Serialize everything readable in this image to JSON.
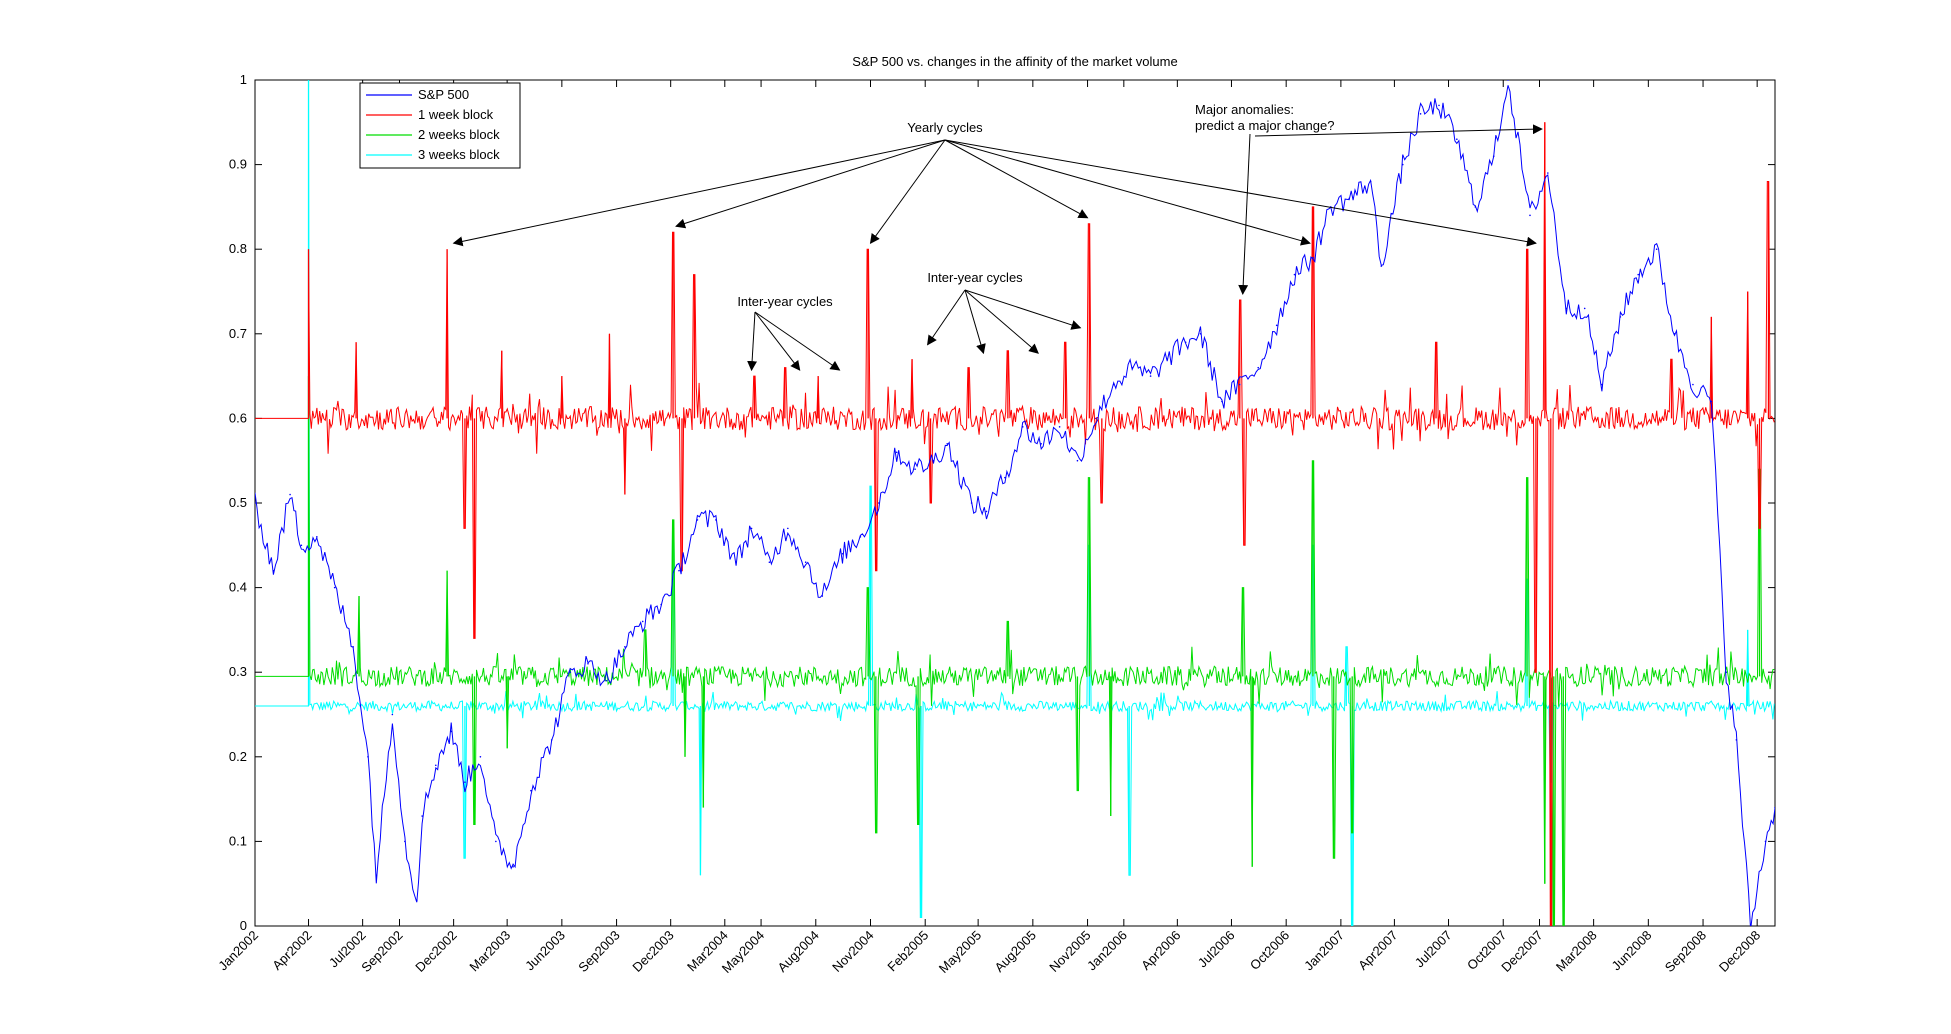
{
  "chart_data": {
    "type": "line",
    "title": "S&P 500 vs. changes in the affinity of the market volume",
    "xlabel": "",
    "ylabel": "",
    "ylim": [
      0,
      1
    ],
    "xlim": [
      "2002-01-01",
      "2008-12-31"
    ],
    "grid": false,
    "legend_position": "top-left",
    "y_ticks": [
      "0",
      "0.1",
      "0.2",
      "0.3",
      "0.4",
      "0.5",
      "0.6",
      "0.7",
      "0.8",
      "0.9",
      "1"
    ],
    "x_ticks": [
      {
        "label": "Jan2002",
        "date": "2002-01-01"
      },
      {
        "label": "Apr2002",
        "date": "2002-04-01"
      },
      {
        "label": "Jul2002",
        "date": "2002-07-01"
      },
      {
        "label": "Sep2002",
        "date": "2002-09-01"
      },
      {
        "label": "Dec2002",
        "date": "2002-12-01"
      },
      {
        "label": "Mar2003",
        "date": "2003-03-01"
      },
      {
        "label": "Jun2003",
        "date": "2003-06-01"
      },
      {
        "label": "Sep2003",
        "date": "2003-09-01"
      },
      {
        "label": "Dec2003",
        "date": "2003-12-01"
      },
      {
        "label": "Mar2004",
        "date": "2004-03-01"
      },
      {
        "label": "May2004",
        "date": "2004-05-01"
      },
      {
        "label": "Aug2004",
        "date": "2004-08-01"
      },
      {
        "label": "Nov2004",
        "date": "2004-11-01"
      },
      {
        "label": "Feb2005",
        "date": "2005-02-01"
      },
      {
        "label": "May2005",
        "date": "2005-05-01"
      },
      {
        "label": "Aug2005",
        "date": "2005-08-01"
      },
      {
        "label": "Nov2005",
        "date": "2005-11-01"
      },
      {
        "label": "Jan2006",
        "date": "2006-01-01"
      },
      {
        "label": "Apr2006",
        "date": "2006-04-01"
      },
      {
        "label": "Jul2006",
        "date": "2006-07-01"
      },
      {
        "label": "Oct2006",
        "date": "2006-10-01"
      },
      {
        "label": "Jan2007",
        "date": "2007-01-01"
      },
      {
        "label": "Apr2007",
        "date": "2007-04-01"
      },
      {
        "label": "Jul2007",
        "date": "2007-07-01"
      },
      {
        "label": "Oct2007",
        "date": "2007-10-01"
      },
      {
        "label": "Dec2007",
        "date": "2007-12-01"
      },
      {
        "label": "Mar2008",
        "date": "2008-03-01"
      },
      {
        "label": "Jun2008",
        "date": "2008-06-01"
      },
      {
        "label": "Sep2008",
        "date": "2008-09-01"
      },
      {
        "label": "Dec2008",
        "date": "2008-12-01"
      }
    ],
    "series": [
      {
        "name": "S&P 500",
        "color": "#0000ff",
        "x": [
          "2002-01-01",
          "2002-02-01",
          "2002-03-01",
          "2002-03-20",
          "2002-04-15",
          "2002-05-15",
          "2002-06-15",
          "2002-07-10",
          "2002-07-24",
          "2002-08-20",
          "2002-09-10",
          "2002-09-30",
          "2002-10-09",
          "2002-11-01",
          "2002-11-27",
          "2002-12-20",
          "2003-01-15",
          "2003-02-10",
          "2003-03-11",
          "2003-04-10",
          "2003-05-15",
          "2003-06-15",
          "2003-07-15",
          "2003-08-15",
          "2003-09-15",
          "2003-10-15",
          "2003-11-15",
          "2003-12-15",
          "2004-01-15",
          "2004-02-15",
          "2004-03-20",
          "2004-04-15",
          "2004-05-15",
          "2004-06-15",
          "2004-07-15",
          "2004-08-12",
          "2004-09-15",
          "2004-10-15",
          "2004-11-15",
          "2004-12-15",
          "2005-01-15",
          "2005-02-15",
          "2005-03-10",
          "2005-04-20",
          "2005-05-15",
          "2005-06-15",
          "2005-07-15",
          "2005-08-15",
          "2005-09-15",
          "2005-10-15",
          "2005-11-15",
          "2005-12-15",
          "2006-01-15",
          "2006-02-15",
          "2006-03-15",
          "2006-04-15",
          "2006-05-10",
          "2006-06-15",
          "2006-07-15",
          "2006-08-15",
          "2006-09-15",
          "2006-10-15",
          "2006-11-15",
          "2006-12-15",
          "2007-01-15",
          "2007-02-20",
          "2007-03-10",
          "2007-04-15",
          "2007-05-15",
          "2007-06-15",
          "2007-07-15",
          "2007-08-15",
          "2007-09-15",
          "2007-10-09",
          "2007-11-15",
          "2007-12-15",
          "2008-01-15",
          "2008-02-15",
          "2008-03-15",
          "2008-04-15",
          "2008-05-15",
          "2008-06-15",
          "2008-07-15",
          "2008-08-15",
          "2008-09-15",
          "2008-10-10",
          "2008-10-27",
          "2008-11-20",
          "2008-12-15",
          "2008-12-31"
        ],
        "values": [
          0.5,
          0.42,
          0.51,
          0.45,
          0.46,
          0.4,
          0.33,
          0.2,
          0.06,
          0.25,
          0.1,
          0.03,
          0.13,
          0.19,
          0.23,
          0.17,
          0.2,
          0.1,
          0.07,
          0.16,
          0.22,
          0.3,
          0.31,
          0.29,
          0.33,
          0.36,
          0.38,
          0.42,
          0.48,
          0.48,
          0.43,
          0.47,
          0.43,
          0.47,
          0.43,
          0.39,
          0.44,
          0.46,
          0.5,
          0.56,
          0.54,
          0.55,
          0.57,
          0.5,
          0.49,
          0.53,
          0.59,
          0.57,
          0.59,
          0.55,
          0.6,
          0.64,
          0.66,
          0.65,
          0.67,
          0.69,
          0.7,
          0.62,
          0.64,
          0.66,
          0.71,
          0.77,
          0.79,
          0.85,
          0.86,
          0.88,
          0.78,
          0.9,
          0.96,
          0.97,
          0.93,
          0.85,
          0.91,
          1.0,
          0.84,
          0.89,
          0.73,
          0.73,
          0.64,
          0.72,
          0.77,
          0.8,
          0.7,
          0.64,
          0.62,
          0.3,
          0.22,
          0.0,
          0.1,
          0.14
        ]
      },
      {
        "name": "1 week block",
        "color": "#ff0000",
        "baseline": 0.6,
        "x": [
          "2002-04-01",
          "2002-06-20",
          "2002-11-20",
          "2002-12-20",
          "2003-01-05",
          "2003-02-20",
          "2003-06-01",
          "2003-08-20",
          "2003-09-15",
          "2003-12-05",
          "2003-12-20",
          "2004-01-10",
          "2004-04-20",
          "2004-06-10",
          "2004-08-05",
          "2004-10-28",
          "2004-11-10",
          "2005-01-10",
          "2005-02-10",
          "2005-04-15",
          "2005-06-20",
          "2005-09-25",
          "2005-11-04",
          "2005-11-25",
          "2006-07-15",
          "2006-07-22",
          "2006-11-15",
          "2007-06-10",
          "2007-11-10",
          "2007-11-25",
          "2007-12-10",
          "2007-12-20",
          "2008-07-10",
          "2008-09-15",
          "2008-11-15",
          "2008-12-05",
          "2008-12-20"
        ],
        "values": [
          0.8,
          0.69,
          0.8,
          0.47,
          0.34,
          0.68,
          0.65,
          0.7,
          0.51,
          0.82,
          0.42,
          0.77,
          0.65,
          0.66,
          0.65,
          0.8,
          0.42,
          0.67,
          0.5,
          0.66,
          0.68,
          0.69,
          0.83,
          0.5,
          0.74,
          0.45,
          0.85,
          0.69,
          0.8,
          0.3,
          0.95,
          0.0,
          0.67,
          0.72,
          0.75,
          0.47,
          0.88
        ]
      },
      {
        "name": "2 weeks block",
        "color": "#00dd00",
        "baseline": 0.295,
        "x": [
          "2002-04-01",
          "2002-06-25",
          "2002-11-20",
          "2003-01-05",
          "2003-03-01",
          "2003-10-20",
          "2003-12-05",
          "2003-12-25",
          "2004-01-25",
          "2004-10-28",
          "2004-11-10",
          "2005-01-20",
          "2005-06-20",
          "2005-10-15",
          "2005-11-04",
          "2005-12-10",
          "2006-07-20",
          "2006-08-05",
          "2006-11-15",
          "2006-12-20",
          "2007-01-20",
          "2007-11-10",
          "2007-12-10",
          "2007-12-25",
          "2008-01-10",
          "2008-12-05"
        ],
        "values": [
          0.65,
          0.39,
          0.42,
          0.12,
          0.21,
          0.35,
          0.48,
          0.2,
          0.14,
          0.4,
          0.11,
          0.12,
          0.36,
          0.16,
          0.53,
          0.13,
          0.4,
          0.07,
          0.55,
          0.08,
          0.11,
          0.53,
          0.05,
          0.0,
          0.0,
          0.54
        ]
      },
      {
        "name": "3 weeks block",
        "color": "#00ffff",
        "baseline": 0.26,
        "x": [
          "2002-04-01",
          "2002-12-20",
          "2003-12-05",
          "2004-01-20",
          "2004-11-01",
          "2005-01-25",
          "2005-11-04",
          "2006-01-10",
          "2006-11-15",
          "2007-01-10",
          "2007-01-20",
          "2007-11-10",
          "2007-12-20",
          "2008-11-15"
        ],
        "values": [
          1.0,
          0.08,
          0.47,
          0.06,
          0.52,
          0.01,
          0.45,
          0.06,
          0.45,
          0.33,
          0.0,
          0.41,
          0.17,
          0.35
        ]
      }
    ],
    "annotations": [
      {
        "text": "Yearly cycles",
        "targets": [
          "2002-12-01",
          "2003-12-10",
          "2004-11-01",
          "2005-11-01",
          "2006-11-10",
          "2007-11-25"
        ]
      },
      {
        "text": "Inter-year cycles",
        "targets": [
          "2004-04-15",
          "2004-07-05",
          "2004-09-10"
        ]
      },
      {
        "text": "Inter-year cycles",
        "targets": [
          "2005-02-05",
          "2005-05-10",
          "2005-08-10",
          "2005-10-20"
        ]
      },
      {
        "text": "Major anomalies:",
        "line2": "predict a major change?",
        "targets": [
          "2006-07-20",
          "2007-12-05"
        ]
      }
    ]
  }
}
